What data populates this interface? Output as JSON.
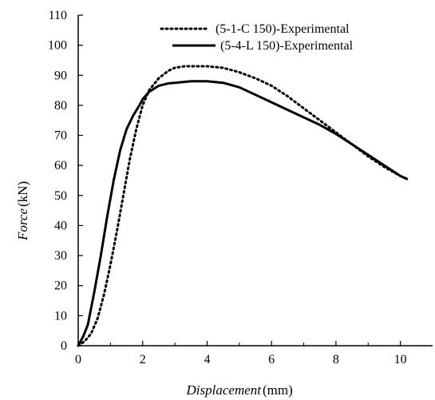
{
  "chart_data": {
    "type": "line",
    "xlabel": {
      "name": "Displacement",
      "unit": "(mm)"
    },
    "ylabel": {
      "name": "Force",
      "unit": "(kN)"
    },
    "xlim": [
      0,
      11
    ],
    "ylim": [
      0,
      110
    ],
    "xticks": [
      0,
      2,
      4,
      6,
      8,
      10
    ],
    "yticks": [
      0,
      10,
      20,
      30,
      40,
      50,
      60,
      70,
      80,
      90,
      100,
      110
    ],
    "grid": false,
    "legend_position": "top-right",
    "series": [
      {
        "name": "(5-1-C 150)-Experimental",
        "style": "dotted",
        "color": "#000000",
        "x": [
          0,
          0.2,
          0.4,
          0.6,
          0.8,
          1.0,
          1.2,
          1.4,
          1.6,
          1.8,
          2.0,
          2.2,
          2.5,
          2.8,
          3.0,
          3.3,
          3.6,
          4.0,
          4.5,
          5.0,
          5.5,
          6.0,
          6.5,
          7.0,
          7.5,
          8.0,
          8.5,
          9.0,
          9.5,
          10.0,
          10.2
        ],
        "y": [
          0,
          1.5,
          4,
          9,
          17,
          27,
          38,
          50,
          62,
          72,
          80,
          85,
          89,
          91.5,
          92.5,
          93,
          93,
          93,
          92.5,
          91,
          89,
          86.5,
          83,
          79,
          75,
          71,
          67,
          63,
          59.5,
          56.5,
          55.5
        ]
      },
      {
        "name": "(5-4-L 150)-Experimental",
        "style": "solid",
        "color": "#000000",
        "x": [
          0,
          0.15,
          0.3,
          0.5,
          0.7,
          0.9,
          1.1,
          1.3,
          1.5,
          1.7,
          1.9,
          2.0,
          2.2,
          2.5,
          2.8,
          3.0,
          3.5,
          4.0,
          4.5,
          5.0,
          5.5,
          6.0,
          6.5,
          7.0,
          7.5,
          8.0,
          8.5,
          9.0,
          9.5,
          10.0,
          10.2
        ],
        "y": [
          0,
          3,
          7,
          18,
          30,
          43,
          55,
          65,
          72,
          76.5,
          80,
          82,
          84.5,
          86.5,
          87.3,
          87.5,
          88,
          88,
          87.5,
          86,
          83.5,
          81,
          78.5,
          76,
          73.5,
          70.5,
          67,
          63.5,
          60,
          56.5,
          55.5
        ]
      }
    ]
  }
}
